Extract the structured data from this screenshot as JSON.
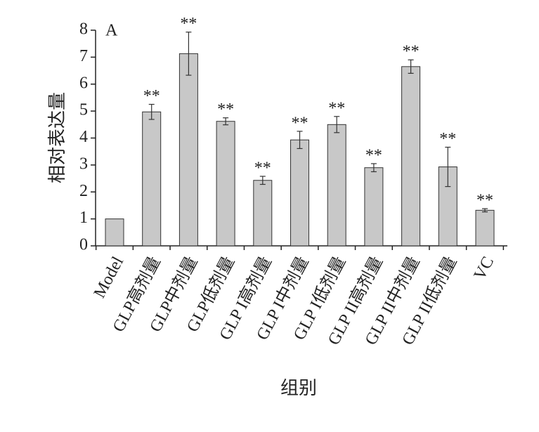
{
  "chart_data": {
    "type": "bar",
    "panel_label": "A",
    "x_label": "组别",
    "y_label": "相对表达量",
    "categories": [
      "Model",
      "GLP高剂量",
      "GLP中剂量",
      "GLP低剂量",
      "GLP I高剂量",
      "GLP I中剂量",
      "GLP I低剂量",
      "GLP II高剂量",
      "GLP II中剂量",
      "GLP II低剂量",
      "VC"
    ],
    "series": [
      {
        "color": "#c8c8c8",
        "values": [
          1.0,
          4.97,
          7.13,
          4.62,
          2.43,
          3.93,
          4.5,
          2.9,
          6.65,
          2.93,
          1.32
        ],
        "errors": [
          0,
          0.28,
          0.8,
          0.13,
          0.15,
          0.32,
          0.3,
          0.15,
          0.25,
          0.73,
          0.06
        ],
        "significance": [
          null,
          "**",
          "**",
          "**",
          "**",
          "**",
          "**",
          "**",
          "**",
          "**",
          "**"
        ]
      }
    ],
    "ylim": [
      0,
      8
    ],
    "yticks": [
      0,
      1,
      2,
      3,
      4,
      5,
      6,
      7,
      8
    ],
    "grid": false
  }
}
